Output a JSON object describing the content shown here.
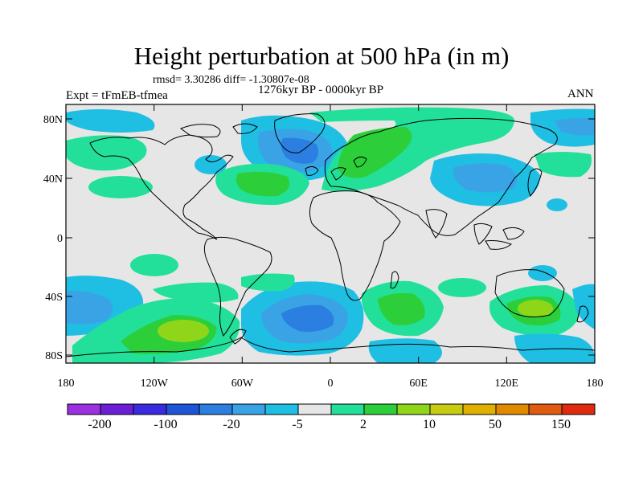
{
  "title": "Height perturbation at 500 hPa (in m)",
  "stats_line": "rmsd= 3.30286 diff= -1.30807e-08",
  "period": "1276kyr BP - 0000kyr BP",
  "experiment": "Expt = tFmEB-tfmea",
  "season": "ANN",
  "lat_labels": [
    "80N",
    "40N",
    "0",
    "40S",
    "80S"
  ],
  "lon_labels": [
    "180",
    "120W",
    "60W",
    "0",
    "60E",
    "120E",
    "180"
  ],
  "colorbar": {
    "labels": [
      "-200",
      "-100",
      "-20",
      "-5",
      "2",
      "10",
      "50",
      "150"
    ],
    "colors": [
      "#9b30e0",
      "#6a1fd6",
      "#3a2be0",
      "#1e55d8",
      "#2a7fe0",
      "#3aa3e6",
      "#1fbfe3",
      "#e6e6e6",
      "#22e09a",
      "#2ccf3a",
      "#8fd61a",
      "#c8cc10",
      "#e0b000",
      "#e08a00",
      "#e05a10",
      "#e02a10"
    ]
  }
}
